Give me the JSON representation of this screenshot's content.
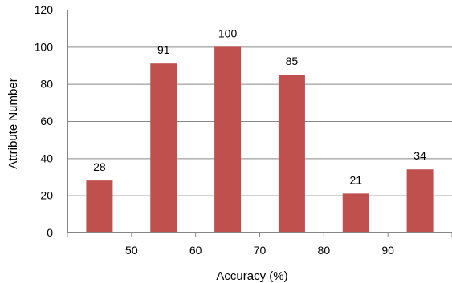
{
  "chart_data": {
    "type": "bar",
    "categories": [
      "45",
      "55",
      "65",
      "75",
      "85",
      "95"
    ],
    "x_values": [
      45,
      55,
      65,
      75,
      85,
      95
    ],
    "values": [
      28,
      91,
      100,
      85,
      21,
      34
    ],
    "data_labels": [
      "28",
      "91",
      "100",
      "85",
      "21",
      "34"
    ],
    "xlabel": "Accuracy (%)",
    "ylabel": "Attribute Number",
    "x_ticks": [
      "50",
      "60",
      "70",
      "80",
      "90"
    ],
    "y_ticks": [
      "0",
      "20",
      "40",
      "60",
      "80",
      "100",
      "120"
    ],
    "xlim": [
      40,
      100
    ],
    "ylim": [
      0,
      120
    ],
    "grid": "horizontal",
    "legend": "none",
    "bar_color": "#C0504D",
    "grid_color": "#868686"
  }
}
